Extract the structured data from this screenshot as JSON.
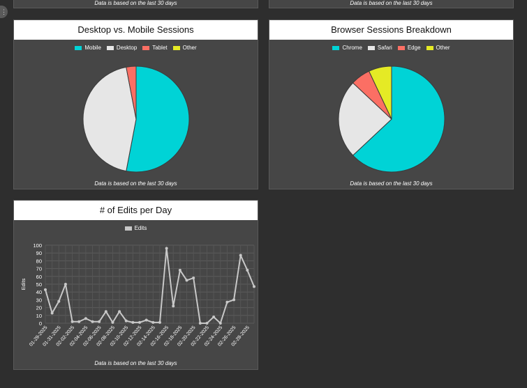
{
  "top_panels": [
    {
      "footnote": "Data is based on the last 30 days"
    },
    {
      "footnote": "Data is based on the last 30 days"
    }
  ],
  "sidebar": {
    "toggle_icon": "drag-handle-icon",
    "toggle_glyph": "⋮"
  },
  "panels": {
    "device": {
      "title": "Desktop vs. Mobile Sessions",
      "footnote": "Data is based on the last 30 days"
    },
    "browser": {
      "title": "Browser Sessions Breakdown",
      "footnote": "Data is based on the last 30 days"
    },
    "edits": {
      "title": "# of Edits per Day",
      "footnote": "Data is based on the last 30 days"
    }
  },
  "chart_data": [
    {
      "type": "pie",
      "title": "Desktop vs. Mobile Sessions",
      "categories": [
        "Mobile",
        "Desktop",
        "Tablet",
        "Other"
      ],
      "values": [
        53,
        44,
        3,
        0
      ],
      "colors": [
        "#00d3d6",
        "#e6e6e6",
        "#fb6f64",
        "#e5ea25"
      ],
      "legend": "top"
    },
    {
      "type": "pie",
      "title": "Browser Sessions Breakdown",
      "categories": [
        "Chrome",
        "Safari",
        "Edge",
        "Other"
      ],
      "values": [
        63,
        24,
        6,
        7
      ],
      "colors": [
        "#00d3d6",
        "#e6e6e6",
        "#fb6f64",
        "#e5ea25"
      ],
      "legend": "top"
    },
    {
      "type": "line",
      "title": "# of Edits per Day",
      "ylabel": "Edits",
      "series": [
        {
          "name": "Edits",
          "values": [
            43,
            13,
            28,
            50,
            2,
            2,
            6,
            2,
            2,
            15,
            1,
            15,
            3,
            1,
            1,
            4,
            1,
            1,
            96,
            22,
            68,
            55,
            58,
            0,
            0,
            8,
            0,
            27,
            30,
            87,
            68,
            47
          ]
        }
      ],
      "tick_labels": [
        "01-29-2025",
        "01-31-2025",
        "02-02-2025",
        "02-04-2025",
        "02-06-2025",
        "02-08-2025",
        "02-10-2025",
        "02-12-2025",
        "02-14-2025",
        "02-16-2025",
        "02-18-2025",
        "02-20-2025",
        "02-22-2025",
        "02-24-2025",
        "02-26-2025",
        "02-28-2025"
      ],
      "yticks": [
        0,
        10,
        20,
        30,
        40,
        50,
        60,
        70,
        80,
        90,
        100
      ],
      "ylim": [
        0,
        100
      ],
      "line_color": "#c8c8c8",
      "grid": true,
      "legend": "top"
    }
  ]
}
